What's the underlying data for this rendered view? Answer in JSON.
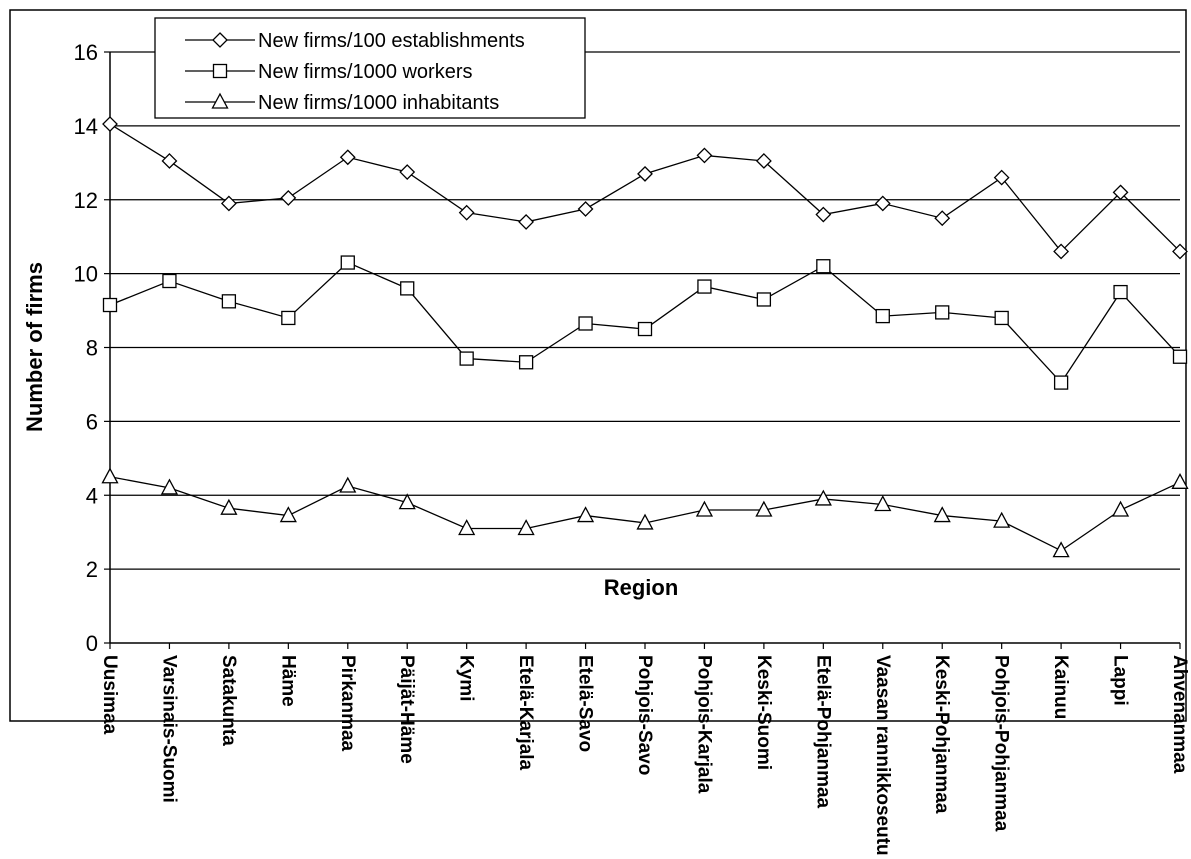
{
  "chart_data": {
    "type": "line",
    "xlabel": "Region",
    "ylabel": "Number of firms",
    "ylim": [
      0,
      16
    ],
    "yticks": [
      0,
      2,
      4,
      6,
      8,
      10,
      12,
      14,
      16
    ],
    "grid": "horizontal",
    "legend_position": "top-left",
    "categories": [
      "Uusimaa",
      "Varsinais-Suomi",
      "Satakunta",
      "Häme",
      "Pirkanmaa",
      "Päijät-Häme",
      "Kymi",
      "Etelä-Karjala",
      "Etelä-Savo",
      "Pohjois-Savo",
      "Pohjois-Karjala",
      "Keski-Suomi",
      "Etelä-Pohjanmaa",
      "Vaasan rannikkoseutu",
      "Keski-Pohjanmaa",
      "Pohjois-Pohjanmaa",
      "Kainuu",
      "Lappi",
      "Ahvenanmaa"
    ],
    "series": [
      {
        "name": "New firms/100 establishments",
        "marker": "diamond",
        "values": [
          14.05,
          13.05,
          11.9,
          12.05,
          13.15,
          12.75,
          11.65,
          11.4,
          11.75,
          12.7,
          13.2,
          13.05,
          11.6,
          11.9,
          11.5,
          12.6,
          10.6,
          12.2,
          10.6
        ]
      },
      {
        "name": "New firms/1000 workers",
        "marker": "square",
        "values": [
          9.15,
          9.8,
          9.25,
          8.8,
          10.3,
          9.6,
          7.7,
          7.6,
          8.65,
          8.5,
          9.65,
          9.3,
          10.2,
          8.85,
          8.95,
          8.8,
          7.05,
          9.5,
          7.75
        ]
      },
      {
        "name": "New firms/1000 inhabitants",
        "marker": "triangle",
        "values": [
          4.5,
          4.2,
          3.65,
          3.45,
          4.25,
          3.8,
          3.1,
          3.1,
          3.45,
          3.25,
          3.6,
          3.6,
          3.9,
          3.75,
          3.45,
          3.3,
          2.5,
          3.6,
          4.35
        ]
      }
    ]
  }
}
